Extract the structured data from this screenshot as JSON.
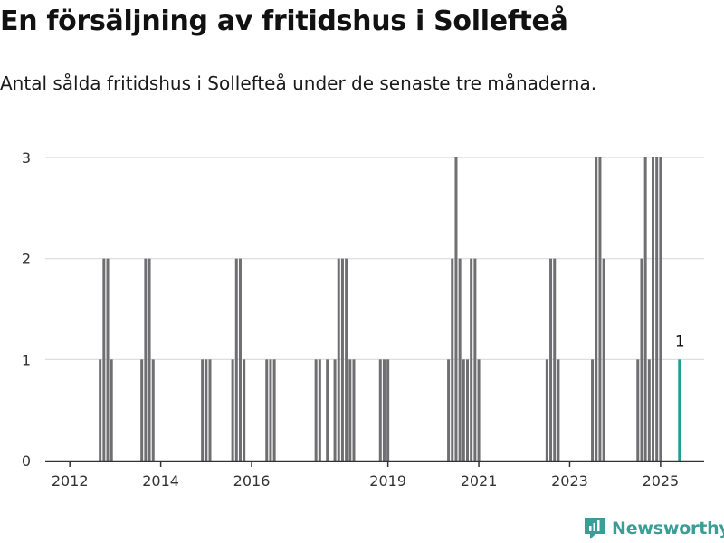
{
  "title": "En försäljning av fritidshus i Sollefteå",
  "subtitle": "Antal sålda fritidshus i Sollefteå under de senaste tre månaderna.",
  "brand": {
    "name": "Newsworthy",
    "icon": "newsworthy-logo-icon",
    "color": "#3a9d96"
  },
  "colors": {
    "bar": "#6f6f72",
    "highlight": "#1f9e94",
    "grid": "#d9d9d9",
    "axis": "#333333"
  },
  "chart_data": {
    "type": "bar",
    "title": "En försäljning av fritidshus i Sollefteå",
    "subtitle": "Antal sålda fritidshus i Sollefteå under de senaste tre månaderna.",
    "xlabel": "",
    "ylabel": "",
    "x_unit": "month",
    "x_range": [
      "2011-07",
      "2025-12"
    ],
    "xticks": [
      "2012",
      "2014",
      "2016",
      "2019",
      "2021",
      "2023",
      "2025"
    ],
    "yticks": [
      0,
      1,
      2,
      3
    ],
    "ylim": [
      0,
      3
    ],
    "grid": true,
    "highlight": {
      "date": "2025-06",
      "value": 1,
      "label": "1"
    },
    "data": [
      [
        "2012-09",
        1
      ],
      [
        "2012-10",
        2
      ],
      [
        "2012-11",
        2
      ],
      [
        "2012-12",
        1
      ],
      [
        "2013-08",
        1
      ],
      [
        "2013-09",
        2
      ],
      [
        "2013-10",
        2
      ],
      [
        "2013-11",
        1
      ],
      [
        "2014-12",
        1
      ],
      [
        "2015-01",
        1
      ],
      [
        "2015-02",
        1
      ],
      [
        "2015-08",
        1
      ],
      [
        "2015-09",
        2
      ],
      [
        "2015-10",
        2
      ],
      [
        "2015-11",
        1
      ],
      [
        "2016-05",
        1
      ],
      [
        "2016-06",
        1
      ],
      [
        "2016-07",
        1
      ],
      [
        "2017-06",
        1
      ],
      [
        "2017-07",
        1
      ],
      [
        "2017-09",
        1
      ],
      [
        "2017-11",
        1
      ],
      [
        "2017-12",
        2
      ],
      [
        "2018-01",
        2
      ],
      [
        "2018-02",
        2
      ],
      [
        "2018-03",
        1
      ],
      [
        "2018-04",
        1
      ],
      [
        "2018-11",
        1
      ],
      [
        "2018-12",
        1
      ],
      [
        "2019-01",
        1
      ],
      [
        "2020-05",
        1
      ],
      [
        "2020-06",
        2
      ],
      [
        "2020-07",
        3
      ],
      [
        "2020-08",
        2
      ],
      [
        "2020-09",
        1
      ],
      [
        "2020-10",
        1
      ],
      [
        "2020-11",
        2
      ],
      [
        "2020-12",
        2
      ],
      [
        "2021-01",
        1
      ],
      [
        "2022-07",
        1
      ],
      [
        "2022-08",
        2
      ],
      [
        "2022-09",
        2
      ],
      [
        "2022-10",
        1
      ],
      [
        "2023-07",
        1
      ],
      [
        "2023-08",
        3
      ],
      [
        "2023-09",
        3
      ],
      [
        "2023-10",
        2
      ],
      [
        "2024-07",
        1
      ],
      [
        "2024-08",
        2
      ],
      [
        "2024-09",
        3
      ],
      [
        "2024-10",
        1
      ],
      [
        "2024-11",
        3
      ],
      [
        "2024-12",
        3
      ],
      [
        "2025-01",
        3
      ],
      [
        "2025-06",
        1
      ]
    ]
  }
}
